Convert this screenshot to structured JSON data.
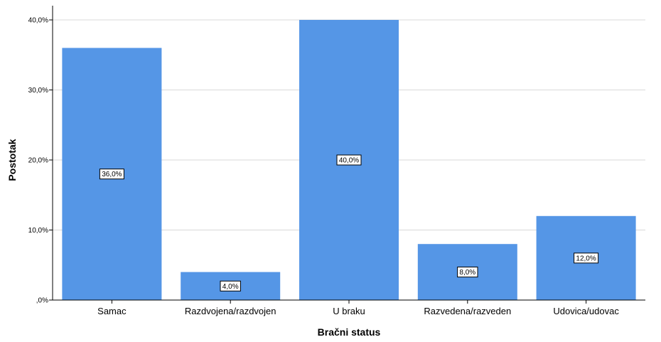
{
  "chart_data": {
    "type": "bar",
    "categories": [
      "Samac",
      "Razdvojena/razdvojen",
      "U braku",
      "Razvedena/razveden",
      "Udovica/udovac"
    ],
    "values": [
      36.0,
      4.0,
      40.0,
      8.0,
      12.0
    ],
    "data_labels": [
      "36,0%",
      "4,0%",
      "40,0%",
      "8,0%",
      "12,0%"
    ],
    "xlabel": "Bračni status",
    "ylabel": "Postotak",
    "ylim": [
      0,
      40
    ],
    "yticks": [
      0,
      10,
      20,
      30,
      40
    ],
    "ytick_labels": [
      ",0%",
      "10,0%",
      "20,0%",
      "30,0%",
      "40,0%"
    ],
    "grid": "horizontal",
    "bar_color": "#5596e6"
  }
}
